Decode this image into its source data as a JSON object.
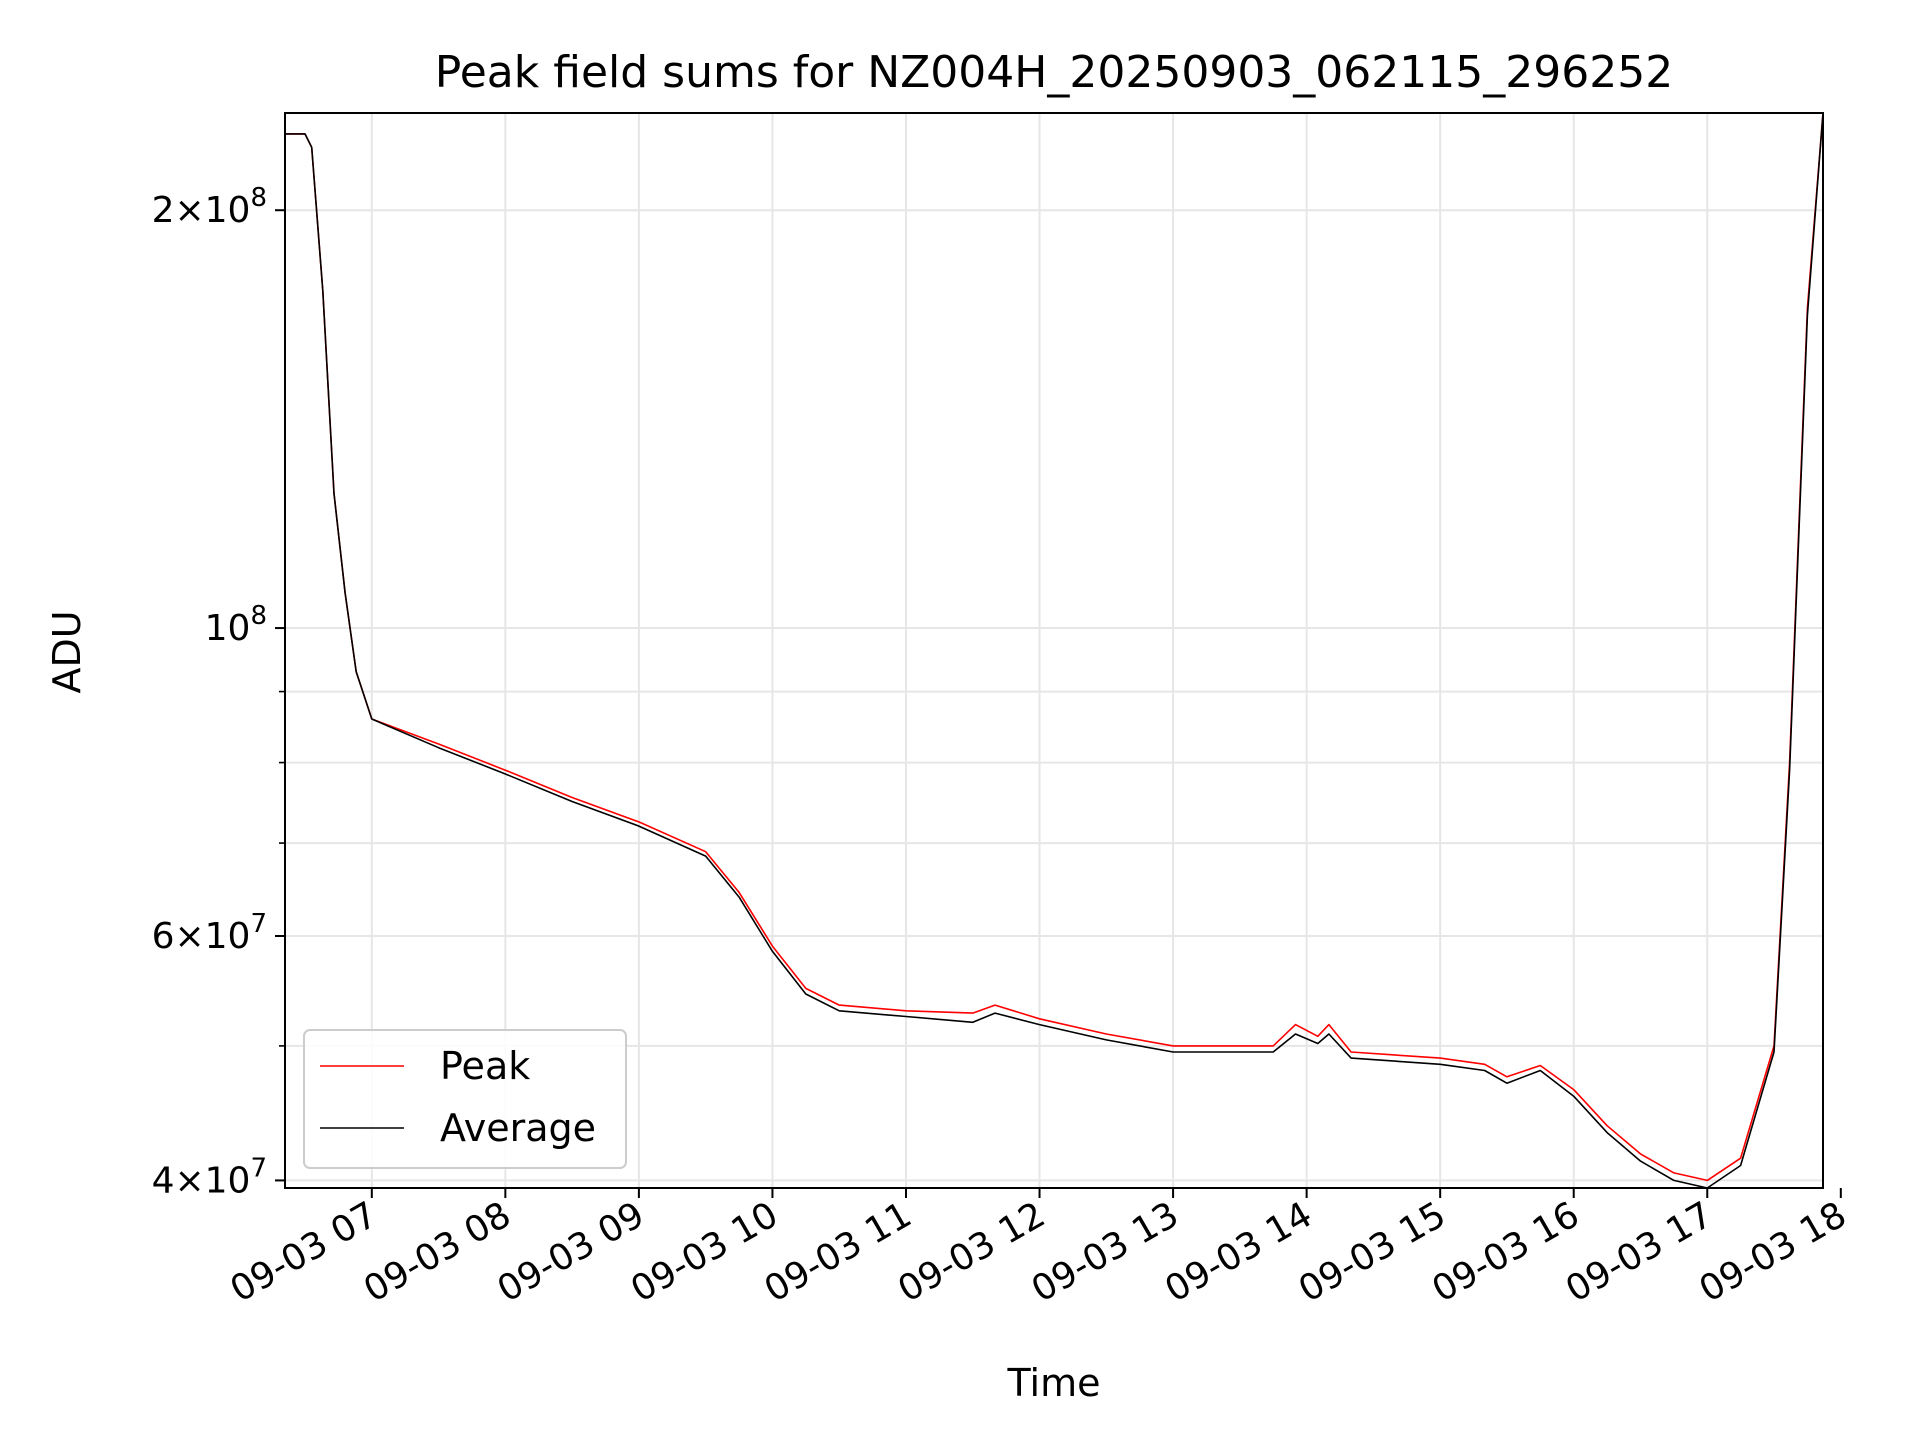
{
  "chart_data": {
    "type": "line",
    "title": "Peak field sums for NZ004H_20250903_062115_296252",
    "xlabel": "Time",
    "ylabel": "ADU",
    "yscale": "log",
    "grid": true,
    "legend_position": "lower-left",
    "xlim": [
      "2025-09-03 06:21",
      "2025-09-03 17:52"
    ],
    "ylim": [
      39500000,
      235000000
    ],
    "x_ticks": [
      "09-03 07",
      "09-03 08",
      "09-03 09",
      "09-03 10",
      "09-03 11",
      "09-03 12",
      "09-03 13",
      "09-03 14",
      "09-03 15",
      "09-03 16",
      "09-03 17",
      "09-03 18"
    ],
    "y_ticks_major": [
      {
        "value": 40000000,
        "mantissa": "4",
        "exponent": "7"
      },
      {
        "value": 60000000,
        "mantissa": "6",
        "exponent": "7"
      },
      {
        "value": 100000000,
        "mantissa": "",
        "exponent": "8"
      },
      {
        "value": 200000000,
        "mantissa": "2",
        "exponent": "8"
      }
    ],
    "y_ticks_minor": [
      50000000,
      70000000,
      80000000,
      90000000
    ],
    "series": [
      {
        "name": "Peak",
        "color": "#ff0000",
        "points": [
          [
            "2025-09-03 06:21",
            227000000
          ],
          [
            "2025-09-03 06:30",
            227000000
          ],
          [
            "2025-09-03 06:33",
            222000000
          ],
          [
            "2025-09-03 06:38",
            175000000
          ],
          [
            "2025-09-03 06:43",
            125000000
          ],
          [
            "2025-09-03 06:48",
            106000000
          ],
          [
            "2025-09-03 06:53",
            93000000
          ],
          [
            "2025-09-03 07:00",
            86000000
          ],
          [
            "2025-09-03 07:30",
            82500000
          ],
          [
            "2025-09-03 08:00",
            79000000
          ],
          [
            "2025-09-03 08:30",
            75500000
          ],
          [
            "2025-09-03 09:00",
            72500000
          ],
          [
            "2025-09-03 09:30",
            69000000
          ],
          [
            "2025-09-03 09:45",
            64500000
          ],
          [
            "2025-09-03 10:00",
            59000000
          ],
          [
            "2025-09-03 10:15",
            55000000
          ],
          [
            "2025-09-03 10:30",
            53500000
          ],
          [
            "2025-09-03 11:00",
            53000000
          ],
          [
            "2025-09-03 11:30",
            52800000
          ],
          [
            "2025-09-03 11:40",
            53500000
          ],
          [
            "2025-09-03 12:00",
            52300000
          ],
          [
            "2025-09-03 12:30",
            51000000
          ],
          [
            "2025-09-03 13:00",
            50000000
          ],
          [
            "2025-09-03 13:45",
            50000000
          ],
          [
            "2025-09-03 13:55",
            51800000
          ],
          [
            "2025-09-03 14:05",
            50800000
          ],
          [
            "2025-09-03 14:10",
            51800000
          ],
          [
            "2025-09-03 14:20",
            49500000
          ],
          [
            "2025-09-03 15:00",
            49000000
          ],
          [
            "2025-09-03 15:20",
            48500000
          ],
          [
            "2025-09-03 15:30",
            47500000
          ],
          [
            "2025-09-03 15:45",
            48400000
          ],
          [
            "2025-09-03 16:00",
            46500000
          ],
          [
            "2025-09-03 16:15",
            43800000
          ],
          [
            "2025-09-03 16:30",
            41800000
          ],
          [
            "2025-09-03 16:45",
            40500000
          ],
          [
            "2025-09-03 17:00",
            40000000
          ],
          [
            "2025-09-03 17:15",
            41500000
          ],
          [
            "2025-09-03 17:30",
            50000000
          ],
          [
            "2025-09-03 17:37",
            80000000
          ],
          [
            "2025-09-03 17:45",
            170000000
          ],
          [
            "2025-09-03 17:52",
            235000000
          ]
        ]
      },
      {
        "name": "Average",
        "color": "#000000",
        "points": [
          [
            "2025-09-03 06:21",
            227000000
          ],
          [
            "2025-09-03 06:30",
            227000000
          ],
          [
            "2025-09-03 06:33",
            222000000
          ],
          [
            "2025-09-03 06:38",
            175000000
          ],
          [
            "2025-09-03 06:43",
            125000000
          ],
          [
            "2025-09-03 06:48",
            106000000
          ],
          [
            "2025-09-03 06:53",
            93000000
          ],
          [
            "2025-09-03 07:00",
            86000000
          ],
          [
            "2025-09-03 07:30",
            82000000
          ],
          [
            "2025-09-03 08:00",
            78500000
          ],
          [
            "2025-09-03 08:30",
            75000000
          ],
          [
            "2025-09-03 09:00",
            72000000
          ],
          [
            "2025-09-03 09:30",
            68500000
          ],
          [
            "2025-09-03 09:45",
            64000000
          ],
          [
            "2025-09-03 10:00",
            58500000
          ],
          [
            "2025-09-03 10:15",
            54500000
          ],
          [
            "2025-09-03 10:30",
            53000000
          ],
          [
            "2025-09-03 11:00",
            52500000
          ],
          [
            "2025-09-03 11:30",
            52000000
          ],
          [
            "2025-09-03 11:40",
            52800000
          ],
          [
            "2025-09-03 12:00",
            51800000
          ],
          [
            "2025-09-03 12:30",
            50500000
          ],
          [
            "2025-09-03 13:00",
            49500000
          ],
          [
            "2025-09-03 13:45",
            49500000
          ],
          [
            "2025-09-03 13:55",
            51000000
          ],
          [
            "2025-09-03 14:05",
            50200000
          ],
          [
            "2025-09-03 14:10",
            51000000
          ],
          [
            "2025-09-03 14:20",
            49000000
          ],
          [
            "2025-09-03 15:00",
            48500000
          ],
          [
            "2025-09-03 15:20",
            48000000
          ],
          [
            "2025-09-03 15:30",
            47000000
          ],
          [
            "2025-09-03 15:45",
            48000000
          ],
          [
            "2025-09-03 16:00",
            46000000
          ],
          [
            "2025-09-03 16:15",
            43300000
          ],
          [
            "2025-09-03 16:30",
            41300000
          ],
          [
            "2025-09-03 16:45",
            40000000
          ],
          [
            "2025-09-03 17:00",
            39500000
          ],
          [
            "2025-09-03 17:15",
            41000000
          ],
          [
            "2025-09-03 17:30",
            49500000
          ],
          [
            "2025-09-03 17:37",
            79000000
          ],
          [
            "2025-09-03 17:45",
            168000000
          ],
          [
            "2025-09-03 17:52",
            235000000
          ]
        ]
      }
    ]
  }
}
